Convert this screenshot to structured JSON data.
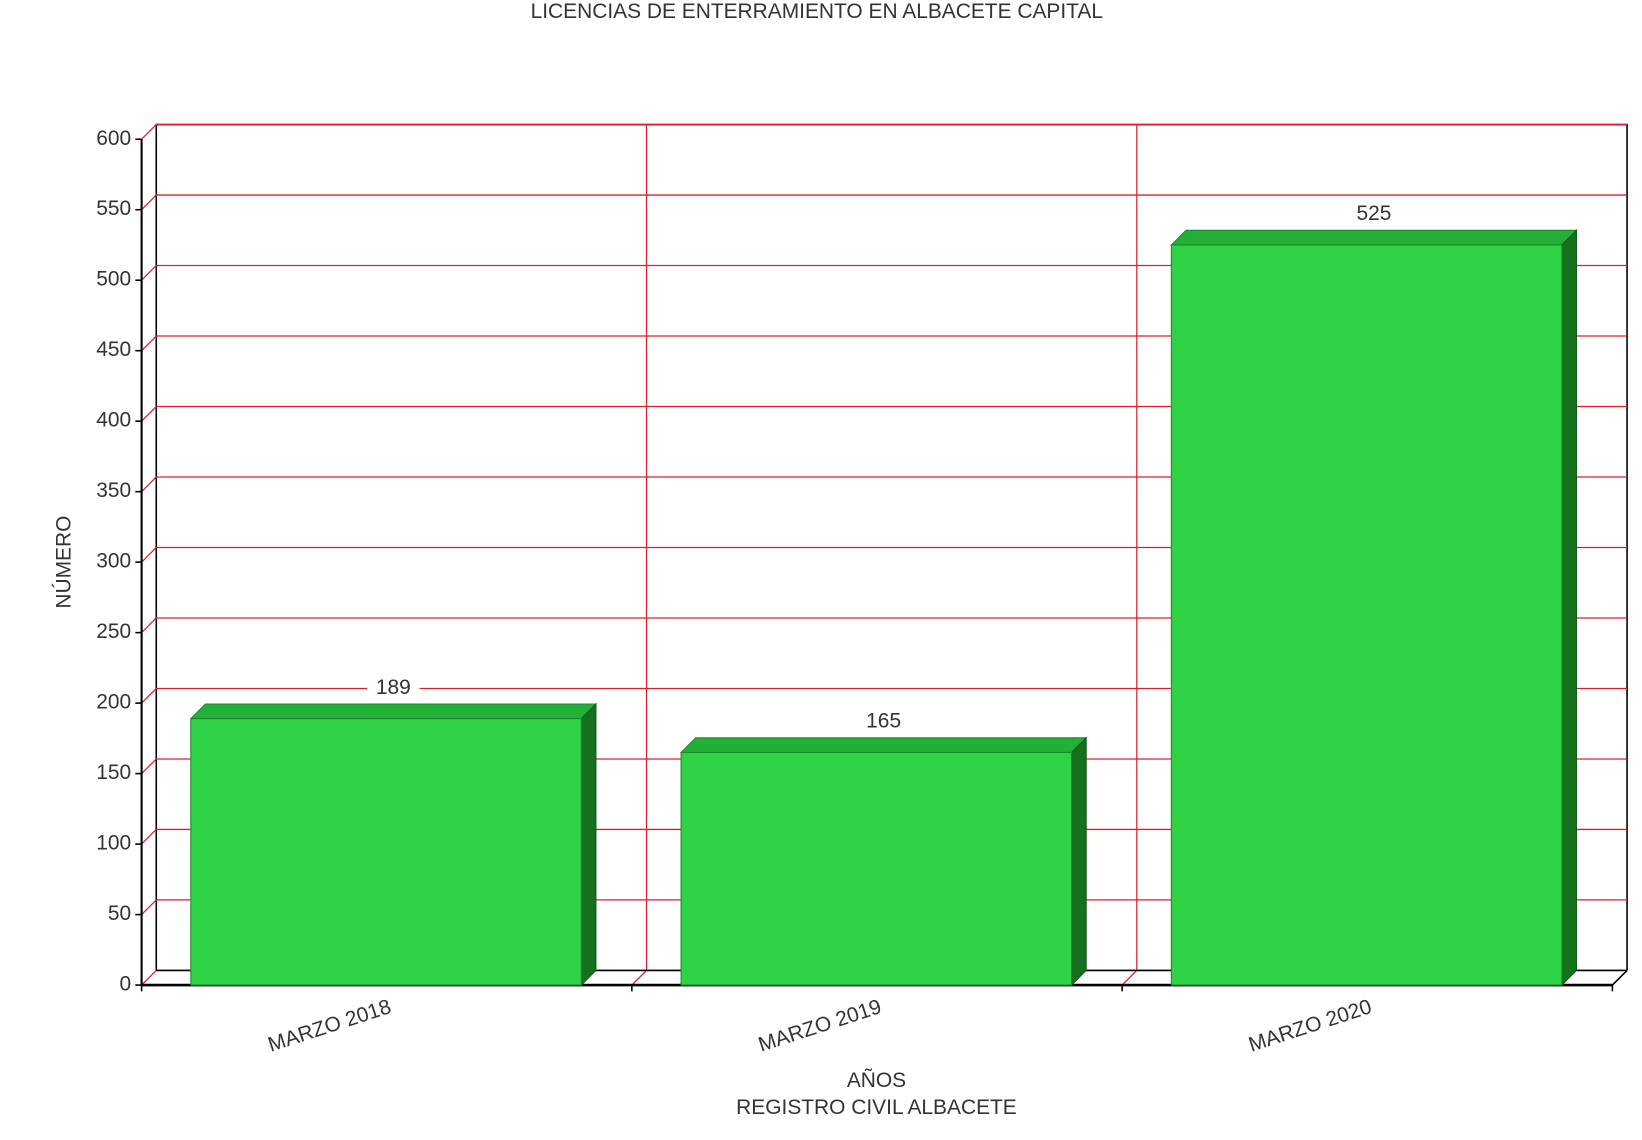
{
  "chart_data": {
    "type": "bar3d",
    "title": "LICENCIAS DE ENTERRAMIENTO EN ALBACETE CAPITAL",
    "ylabel": "NÚMERO",
    "xlabel": "AÑOS",
    "source": "REGISTRO CIVIL ALBACETE",
    "categories": [
      "MARZO 2018",
      "MARZO 2019",
      "MARZO 2020"
    ],
    "values": [
      189,
      165,
      525
    ],
    "color": "#2fd145",
    "grid_color": "#d9202e",
    "ylim": [
      0,
      600
    ],
    "yticks": [
      0,
      50,
      100,
      150,
      200,
      250,
      300,
      350,
      400,
      450,
      500,
      550,
      600
    ],
    "grid": true
  }
}
